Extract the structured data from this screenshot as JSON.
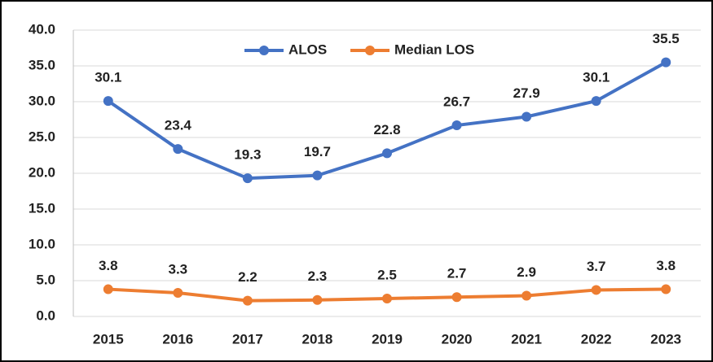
{
  "chart_data": {
    "type": "line",
    "categories": [
      "2015",
      "2016",
      "2017",
      "2018",
      "2019",
      "2020",
      "2021",
      "2022",
      "2023"
    ],
    "series": [
      {
        "name": "ALOS",
        "color": "#4472c4",
        "values": [
          30.1,
          23.4,
          19.3,
          19.7,
          22.8,
          26.7,
          27.9,
          30.1,
          35.5
        ]
      },
      {
        "name": "Median LOS",
        "color": "#ed7d31",
        "values": [
          3.8,
          3.3,
          2.2,
          2.3,
          2.5,
          2.7,
          2.9,
          3.7,
          3.8
        ]
      }
    ],
    "ylim": [
      0,
      40
    ],
    "yticks": [
      {
        "value": 0,
        "label": "0.0"
      },
      {
        "value": 5,
        "label": "5.0"
      },
      {
        "value": 10,
        "label": "10.0"
      },
      {
        "value": 15,
        "label": "15.0"
      },
      {
        "value": 20,
        "label": "20.0"
      },
      {
        "value": 25,
        "label": "25.0"
      },
      {
        "value": 30,
        "label": "30.0"
      },
      {
        "value": 35,
        "label": "35.0"
      },
      {
        "value": 40,
        "label": "40.0"
      }
    ],
    "grid": true,
    "legend": "top"
  }
}
